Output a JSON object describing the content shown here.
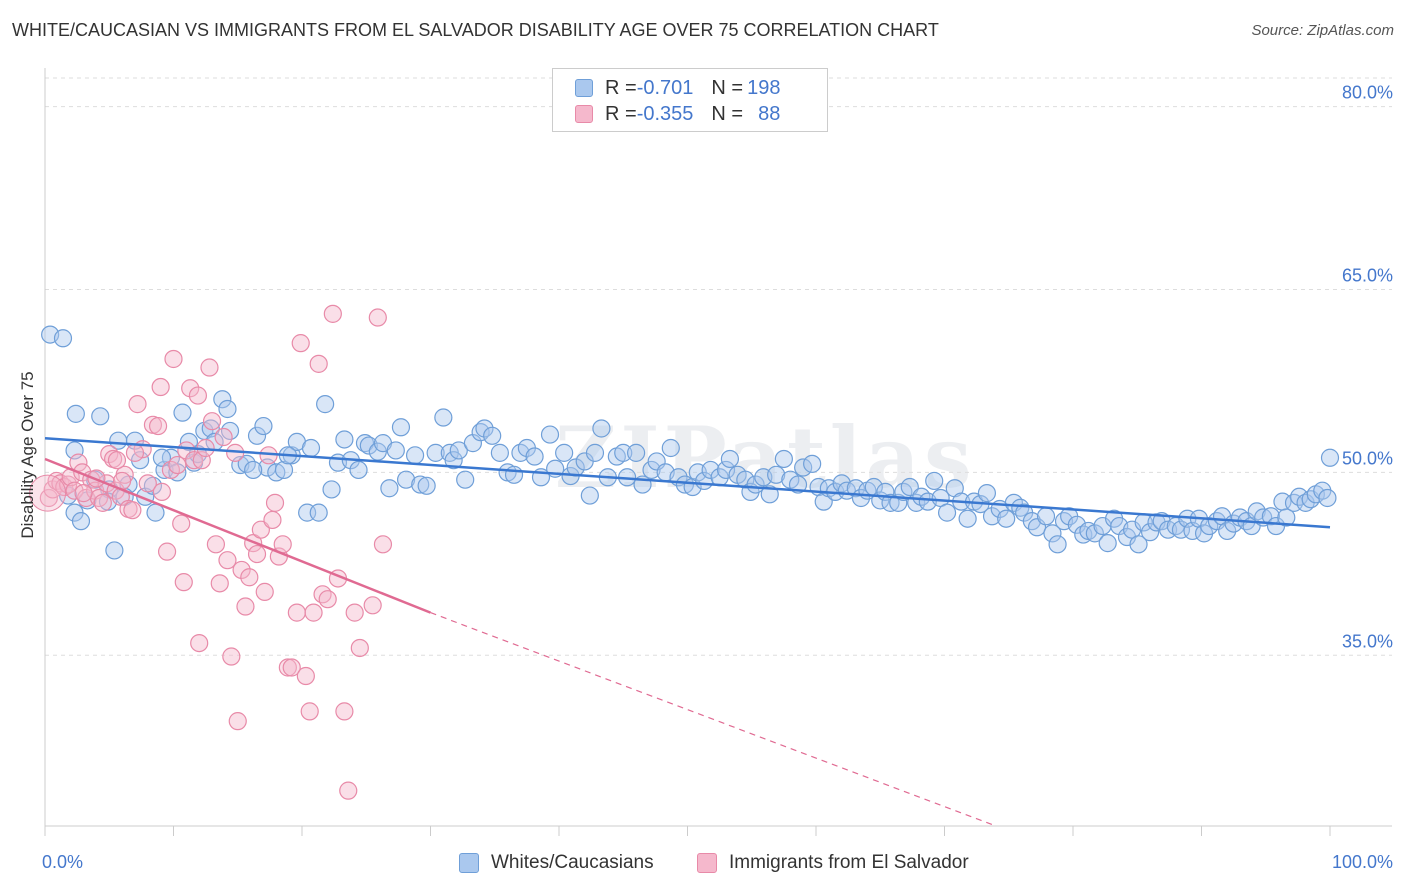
{
  "title": "WHITE/CAUCASIAN VS IMMIGRANTS FROM EL SALVADOR DISABILITY AGE OVER 75 CORRELATION CHART",
  "source": "Source: ZipAtlas.com",
  "watermark": "ZIPatlas",
  "colors": {
    "blue_fill": "#aac8ee",
    "blue_stroke": "#6f9fd8",
    "blue_line": "#3a78d0",
    "pink_fill": "#f5b8cc",
    "pink_stroke": "#e88aa8",
    "pink_line": "#e06a92",
    "axis_text": "#4477cc",
    "grid": "#dddddd"
  },
  "legend": {
    "rows": [
      {
        "r_label": "R = ",
        "r_value": "-0.701",
        "n_label": "N = ",
        "n_value": "198",
        "series": "blue"
      },
      {
        "r_label": "R = ",
        "r_value": "-0.355",
        "n_label": "N = ",
        "n_value": "88",
        "series": "pink"
      }
    ]
  },
  "bottom_legend": [
    "Whites/Caucasians",
    "Immigrants from El Salvador"
  ],
  "chart_data": {
    "type": "scatter",
    "title": "WHITE/CAUCASIAN VS IMMIGRANTS FROM EL SALVADOR DISABILITY AGE OVER 75 CORRELATION CHART",
    "xlabel": "",
    "ylabel": "Disability Age Over 75",
    "xlim": [
      0,
      100
    ],
    "ylim": [
      21,
      83
    ],
    "x_tick_labels": [
      "0.0%",
      "100.0%"
    ],
    "y_ticks": [
      35,
      50,
      65,
      80
    ],
    "y_tick_labels": [
      "35.0%",
      "50.0%",
      "65.0%",
      "80.0%"
    ],
    "grid": "horizontal dashed",
    "legend_placement": "top-center",
    "series": [
      {
        "name": "Whites/Caucasians",
        "trend": {
          "x": [
            0,
            100
          ],
          "y": [
            52.8,
            45.5
          ]
        },
        "points": [
          [
            0.4,
            61.3
          ],
          [
            1.4,
            61.0
          ],
          [
            2.3,
            51.8
          ],
          [
            2.3,
            46.7
          ],
          [
            2.4,
            54.8
          ],
          [
            2.8,
            46.0
          ],
          [
            3.3,
            47.7
          ],
          [
            3.9,
            49.4
          ],
          [
            4.3,
            54.6
          ],
          [
            5.0,
            48.6
          ],
          [
            5.4,
            43.6
          ],
          [
            5.7,
            52.6
          ],
          [
            6.5,
            49.0
          ],
          [
            7.0,
            52.6
          ],
          [
            7.4,
            51.0
          ],
          [
            7.8,
            48.0
          ],
          [
            8.4,
            48.9
          ],
          [
            8.6,
            46.7
          ],
          [
            9.3,
            50.2
          ],
          [
            9.8,
            51.2
          ],
          [
            10.3,
            50.0
          ],
          [
            10.7,
            54.9
          ],
          [
            11.2,
            52.5
          ],
          [
            11.6,
            50.8
          ],
          [
            12.4,
            53.4
          ],
          [
            12.9,
            53.6
          ],
          [
            13.2,
            52.5
          ],
          [
            13.8,
            56.0
          ],
          [
            14.2,
            55.2
          ],
          [
            14.4,
            53.4
          ],
          [
            15.2,
            50.6
          ],
          [
            15.7,
            50.7
          ],
          [
            16.5,
            53.0
          ],
          [
            17.0,
            53.8
          ],
          [
            17.3,
            50.4
          ],
          [
            18.0,
            50.0
          ],
          [
            18.6,
            50.2
          ],
          [
            19.2,
            51.4
          ],
          [
            19.6,
            52.5
          ],
          [
            20.4,
            46.7
          ],
          [
            20.7,
            52.0
          ],
          [
            21.3,
            46.7
          ],
          [
            21.8,
            55.6
          ],
          [
            22.3,
            48.6
          ],
          [
            22.8,
            50.8
          ],
          [
            23.3,
            52.7
          ],
          [
            23.8,
            51.0
          ],
          [
            24.4,
            50.2
          ],
          [
            24.9,
            52.4
          ],
          [
            25.2,
            52.2
          ],
          [
            25.9,
            51.7
          ],
          [
            26.3,
            52.4
          ],
          [
            26.8,
            48.7
          ],
          [
            27.3,
            51.8
          ],
          [
            27.7,
            53.7
          ],
          [
            28.1,
            49.4
          ],
          [
            28.8,
            51.4
          ],
          [
            29.2,
            49.0
          ],
          [
            29.7,
            48.9
          ],
          [
            30.4,
            51.6
          ],
          [
            31.0,
            54.5
          ],
          [
            31.5,
            51.6
          ],
          [
            31.8,
            51.0
          ],
          [
            32.2,
            51.8
          ],
          [
            32.7,
            49.4
          ],
          [
            33.3,
            52.4
          ],
          [
            33.9,
            53.3
          ],
          [
            34.2,
            53.6
          ],
          [
            34.8,
            53.0
          ],
          [
            35.4,
            51.6
          ],
          [
            36.0,
            50.0
          ],
          [
            36.5,
            49.8
          ],
          [
            37.0,
            51.6
          ],
          [
            37.5,
            52.0
          ],
          [
            38.1,
            51.3
          ],
          [
            38.6,
            49.6
          ],
          [
            39.3,
            53.1
          ],
          [
            39.7,
            50.3
          ],
          [
            40.4,
            51.6
          ],
          [
            40.9,
            49.7
          ],
          [
            41.3,
            50.4
          ],
          [
            42.0,
            50.9
          ],
          [
            42.4,
            48.1
          ],
          [
            42.8,
            51.6
          ],
          [
            43.3,
            53.6
          ],
          [
            43.8,
            49.6
          ],
          [
            44.5,
            51.3
          ],
          [
            45.0,
            51.6
          ],
          [
            45.3,
            49.6
          ],
          [
            46.0,
            51.6
          ],
          [
            46.5,
            49.0
          ],
          [
            47.2,
            50.2
          ],
          [
            47.6,
            50.9
          ],
          [
            48.3,
            50.0
          ],
          [
            48.7,
            52.0
          ],
          [
            49.3,
            49.6
          ],
          [
            49.8,
            49.0
          ],
          [
            50.4,
            48.8
          ],
          [
            50.8,
            50.0
          ],
          [
            51.3,
            49.3
          ],
          [
            51.8,
            50.2
          ],
          [
            52.5,
            49.6
          ],
          [
            53.0,
            50.2
          ],
          [
            53.3,
            51.1
          ],
          [
            53.9,
            49.8
          ],
          [
            54.5,
            49.4
          ],
          [
            54.9,
            48.4
          ],
          [
            55.3,
            49.0
          ],
          [
            55.9,
            49.6
          ],
          [
            56.4,
            48.2
          ],
          [
            56.9,
            49.8
          ],
          [
            57.5,
            51.1
          ],
          [
            58.0,
            49.4
          ],
          [
            58.6,
            49.0
          ],
          [
            59.0,
            50.4
          ],
          [
            59.7,
            50.7
          ],
          [
            60.2,
            48.8
          ],
          [
            60.6,
            47.6
          ],
          [
            61.0,
            48.7
          ],
          [
            61.5,
            48.4
          ],
          [
            62.0,
            49.1
          ],
          [
            62.4,
            48.5
          ],
          [
            63.1,
            48.7
          ],
          [
            63.5,
            47.9
          ],
          [
            64.0,
            48.5
          ],
          [
            64.5,
            48.8
          ],
          [
            65.0,
            47.7
          ],
          [
            65.4,
            48.4
          ],
          [
            65.8,
            47.5
          ],
          [
            66.4,
            47.5
          ],
          [
            66.8,
            48.4
          ],
          [
            67.3,
            48.8
          ],
          [
            67.8,
            47.5
          ],
          [
            68.2,
            48.0
          ],
          [
            68.7,
            47.6
          ],
          [
            69.2,
            49.3
          ],
          [
            69.7,
            47.9
          ],
          [
            70.2,
            46.7
          ],
          [
            70.8,
            48.7
          ],
          [
            71.3,
            47.6
          ],
          [
            71.8,
            46.2
          ],
          [
            72.3,
            47.6
          ],
          [
            72.8,
            47.4
          ],
          [
            73.3,
            48.3
          ],
          [
            73.7,
            46.4
          ],
          [
            74.3,
            47.0
          ],
          [
            74.8,
            46.2
          ],
          [
            75.4,
            47.5
          ],
          [
            75.9,
            47.1
          ],
          [
            76.2,
            46.7
          ],
          [
            76.8,
            46.0
          ],
          [
            77.2,
            45.5
          ],
          [
            77.9,
            46.4
          ],
          [
            78.4,
            45.0
          ],
          [
            78.8,
            44.1
          ],
          [
            79.3,
            46.0
          ],
          [
            79.7,
            46.4
          ],
          [
            80.3,
            45.7
          ],
          [
            80.8,
            44.9
          ],
          [
            81.2,
            45.2
          ],
          [
            81.7,
            45.0
          ],
          [
            82.3,
            45.6
          ],
          [
            82.7,
            44.2
          ],
          [
            83.2,
            46.2
          ],
          [
            83.6,
            45.6
          ],
          [
            84.2,
            44.7
          ],
          [
            84.6,
            45.3
          ],
          [
            85.1,
            44.1
          ],
          [
            85.5,
            45.9
          ],
          [
            86.0,
            45.1
          ],
          [
            86.5,
            45.9
          ],
          [
            86.9,
            46.0
          ],
          [
            87.4,
            45.3
          ],
          [
            88.0,
            45.6
          ],
          [
            88.4,
            45.3
          ],
          [
            88.9,
            46.2
          ],
          [
            89.3,
            45.2
          ],
          [
            89.8,
            46.2
          ],
          [
            90.2,
            45.0
          ],
          [
            90.6,
            45.6
          ],
          [
            91.2,
            46.0
          ],
          [
            91.6,
            46.4
          ],
          [
            92.0,
            45.2
          ],
          [
            92.5,
            45.8
          ],
          [
            93.0,
            46.3
          ],
          [
            93.5,
            46.0
          ],
          [
            93.9,
            45.6
          ],
          [
            94.3,
            46.8
          ],
          [
            94.8,
            46.3
          ],
          [
            95.4,
            46.4
          ],
          [
            95.8,
            45.6
          ],
          [
            96.3,
            47.6
          ],
          [
            96.6,
            46.3
          ],
          [
            97.2,
            47.5
          ],
          [
            97.6,
            48.0
          ],
          [
            98.1,
            47.5
          ],
          [
            98.5,
            47.8
          ],
          [
            98.9,
            48.2
          ],
          [
            99.4,
            48.5
          ],
          [
            99.8,
            47.9
          ],
          [
            100.0,
            51.2
          ],
          [
            1.8,
            48.1
          ],
          [
            4.9,
            47.6
          ],
          [
            6.2,
            48.0
          ],
          [
            9.1,
            51.2
          ],
          [
            11.9,
            51.5
          ],
          [
            16.2,
            50.2
          ],
          [
            18.9,
            51.4
          ]
        ]
      },
      {
        "name": "Immigrants from El Salvador",
        "trend_solid": {
          "x": [
            0,
            30
          ],
          "y": [
            51.1,
            38.5
          ]
        },
        "trend_dashed": {
          "x": [
            30,
            74
          ],
          "y": [
            38.5,
            21.0
          ]
        },
        "points": [
          [
            0.3,
            47.9
          ],
          [
            0.6,
            48.6
          ],
          [
            0.9,
            49.3
          ],
          [
            1.2,
            49.1
          ],
          [
            1.5,
            48.8
          ],
          [
            1.8,
            49.0
          ],
          [
            2.0,
            49.6
          ],
          [
            2.3,
            48.5
          ],
          [
            2.6,
            50.8
          ],
          [
            2.9,
            50.0
          ],
          [
            3.2,
            47.9
          ],
          [
            3.6,
            49.4
          ],
          [
            3.9,
            48.5
          ],
          [
            4.2,
            47.9
          ],
          [
            4.5,
            47.5
          ],
          [
            4.8,
            49.1
          ],
          [
            5.0,
            51.5
          ],
          [
            5.3,
            51.1
          ],
          [
            5.5,
            48.5
          ],
          [
            5.9,
            48.0
          ],
          [
            6.2,
            49.8
          ],
          [
            6.5,
            47.0
          ],
          [
            6.8,
            46.9
          ],
          [
            6.0,
            49.3
          ],
          [
            7.2,
            55.6
          ],
          [
            7.6,
            51.9
          ],
          [
            8.0,
            49.1
          ],
          [
            8.4,
            53.9
          ],
          [
            8.8,
            53.8
          ],
          [
            9.1,
            48.4
          ],
          [
            9.5,
            43.5
          ],
          [
            9.8,
            50.2
          ],
          [
            10.0,
            59.3
          ],
          [
            10.3,
            50.6
          ],
          [
            10.6,
            45.8
          ],
          [
            11.0,
            51.8
          ],
          [
            11.3,
            56.9
          ],
          [
            11.6,
            51.0
          ],
          [
            11.9,
            56.3
          ],
          [
            12.2,
            51.0
          ],
          [
            12.5,
            52.0
          ],
          [
            12.8,
            58.6
          ],
          [
            13.0,
            54.2
          ],
          [
            13.3,
            44.1
          ],
          [
            13.6,
            40.9
          ],
          [
            13.9,
            52.9
          ],
          [
            14.2,
            42.8
          ],
          [
            14.5,
            34.9
          ],
          [
            14.8,
            51.6
          ],
          [
            15.0,
            29.6
          ],
          [
            15.3,
            42.0
          ],
          [
            15.6,
            39.0
          ],
          [
            15.9,
            41.4
          ],
          [
            16.2,
            44.2
          ],
          [
            16.5,
            43.3
          ],
          [
            16.8,
            45.3
          ],
          [
            17.1,
            40.2
          ],
          [
            17.4,
            51.4
          ],
          [
            17.7,
            46.1
          ],
          [
            17.9,
            47.5
          ],
          [
            18.2,
            43.1
          ],
          [
            18.5,
            44.1
          ],
          [
            18.9,
            34.0
          ],
          [
            19.2,
            34.0
          ],
          [
            19.6,
            38.5
          ],
          [
            19.9,
            60.6
          ],
          [
            20.3,
            33.3
          ],
          [
            20.6,
            30.4
          ],
          [
            20.9,
            38.5
          ],
          [
            21.3,
            58.9
          ],
          [
            21.6,
            40.0
          ],
          [
            22.0,
            39.6
          ],
          [
            22.4,
            63.0
          ],
          [
            22.8,
            41.3
          ],
          [
            23.3,
            30.4
          ],
          [
            23.6,
            23.9
          ],
          [
            24.1,
            38.5
          ],
          [
            24.5,
            35.6
          ],
          [
            25.5,
            39.1
          ],
          [
            25.9,
            62.7
          ],
          [
            26.3,
            44.1
          ],
          [
            10.8,
            41.0
          ],
          [
            12.0,
            36.0
          ],
          [
            9.0,
            57.0
          ],
          [
            7.0,
            51.6
          ],
          [
            5.6,
            51.0
          ],
          [
            4.0,
            49.5
          ],
          [
            3.0,
            48.3
          ]
        ]
      }
    ]
  }
}
